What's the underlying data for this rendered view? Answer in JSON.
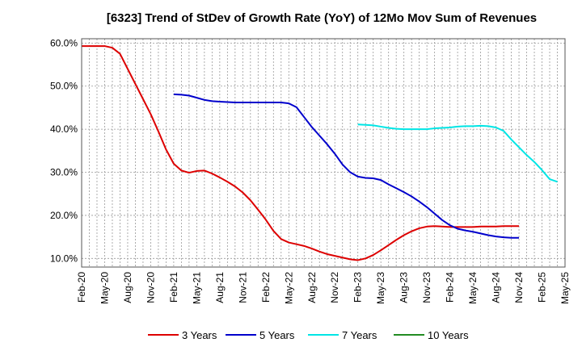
{
  "chart_data": {
    "type": "line",
    "title": "[6323]  Trend of StDev of Growth Rate (YoY) of 12Mo Mov Sum of Revenues",
    "xlabel": "",
    "ylabel": "",
    "ylim": [
      8,
      61
    ],
    "yticks": [
      10,
      20,
      30,
      40,
      50,
      60
    ],
    "ytick_labels": [
      "10.0%",
      "20.0%",
      "30.0%",
      "40.0%",
      "50.0%",
      "60.0%"
    ],
    "xticks": [
      "Feb-20",
      "May-20",
      "Aug-20",
      "Nov-20",
      "Feb-21",
      "May-21",
      "Aug-21",
      "Nov-21",
      "Feb-22",
      "May-22",
      "Aug-22",
      "Nov-22",
      "Feb-23",
      "May-23",
      "Aug-23",
      "Nov-23",
      "Feb-24",
      "May-24",
      "Aug-24",
      "Nov-24",
      "Feb-25",
      "May-25"
    ],
    "x_start": "Feb-20",
    "x_end": "May-25",
    "grid": true,
    "legend_position": "bottom",
    "series": [
      {
        "name": "3 Years",
        "color": "#dd0000",
        "points": [
          [
            0,
            59.3
          ],
          [
            1,
            59.3
          ],
          [
            2,
            59.3
          ],
          [
            3,
            59.3
          ],
          [
            4,
            58.9
          ],
          [
            5,
            57.5
          ],
          [
            6,
            54.0
          ],
          [
            7,
            50.5
          ],
          [
            8,
            47.0
          ],
          [
            9,
            43.5
          ],
          [
            10,
            39.5
          ],
          [
            11,
            35.3
          ],
          [
            12,
            32.0
          ],
          [
            13,
            30.4
          ],
          [
            14,
            29.9
          ],
          [
            15,
            30.3
          ],
          [
            16,
            30.4
          ],
          [
            17,
            29.7
          ],
          [
            18,
            28.8
          ],
          [
            19,
            27.8
          ],
          [
            20,
            26.7
          ],
          [
            21,
            25.3
          ],
          [
            22,
            23.5
          ],
          [
            23,
            21.3
          ],
          [
            24,
            19.0
          ],
          [
            25,
            16.4
          ],
          [
            26,
            14.5
          ],
          [
            27,
            13.7
          ],
          [
            28,
            13.3
          ],
          [
            29,
            12.9
          ],
          [
            30,
            12.3
          ],
          [
            31,
            11.6
          ],
          [
            32,
            11.0
          ],
          [
            33,
            10.6
          ],
          [
            34,
            10.2
          ],
          [
            35,
            9.8
          ],
          [
            36,
            9.6
          ],
          [
            37,
            10.0
          ],
          [
            38,
            10.8
          ],
          [
            39,
            11.9
          ],
          [
            40,
            13.1
          ],
          [
            41,
            14.3
          ],
          [
            42,
            15.4
          ],
          [
            43,
            16.3
          ],
          [
            44,
            17.0
          ],
          [
            45,
            17.4
          ],
          [
            46,
            17.5
          ],
          [
            47,
            17.4
          ],
          [
            48,
            17.3
          ],
          [
            49,
            17.3
          ],
          [
            50,
            17.3
          ],
          [
            51,
            17.3
          ],
          [
            52,
            17.4
          ],
          [
            53,
            17.4
          ],
          [
            54,
            17.4
          ],
          [
            55,
            17.5
          ],
          [
            56,
            17.5
          ],
          [
            57,
            17.5
          ]
        ]
      },
      {
        "name": "5 Years",
        "color": "#0000cc",
        "points": [
          [
            12,
            48.1
          ],
          [
            13,
            48.0
          ],
          [
            14,
            47.8
          ],
          [
            15,
            47.3
          ],
          [
            16,
            46.8
          ],
          [
            17,
            46.5
          ],
          [
            18,
            46.4
          ],
          [
            19,
            46.3
          ],
          [
            20,
            46.2
          ],
          [
            21,
            46.2
          ],
          [
            22,
            46.2
          ],
          [
            23,
            46.2
          ],
          [
            24,
            46.2
          ],
          [
            25,
            46.2
          ],
          [
            26,
            46.2
          ],
          [
            27,
            46.0
          ],
          [
            28,
            45.1
          ],
          [
            29,
            42.8
          ],
          [
            30,
            40.5
          ],
          [
            31,
            38.5
          ],
          [
            32,
            36.5
          ],
          [
            33,
            34.3
          ],
          [
            34,
            31.8
          ],
          [
            35,
            30.0
          ],
          [
            36,
            29.0
          ],
          [
            37,
            28.7
          ],
          [
            38,
            28.6
          ],
          [
            39,
            28.2
          ],
          [
            40,
            27.2
          ],
          [
            41,
            26.3
          ],
          [
            42,
            25.4
          ],
          [
            43,
            24.4
          ],
          [
            44,
            23.2
          ],
          [
            45,
            21.9
          ],
          [
            46,
            20.4
          ],
          [
            47,
            18.9
          ],
          [
            48,
            17.7
          ],
          [
            49,
            16.9
          ],
          [
            50,
            16.5
          ],
          [
            51,
            16.2
          ],
          [
            52,
            15.8
          ],
          [
            53,
            15.4
          ],
          [
            54,
            15.1
          ],
          [
            55,
            14.9
          ],
          [
            56,
            14.8
          ],
          [
            57,
            14.8
          ]
        ]
      },
      {
        "name": "7 Years",
        "color": "#00e5e5",
        "points": [
          [
            36,
            41.1
          ],
          [
            37,
            41.0
          ],
          [
            38,
            40.9
          ],
          [
            39,
            40.6
          ],
          [
            40,
            40.3
          ],
          [
            41,
            40.1
          ],
          [
            42,
            40.0
          ],
          [
            43,
            40.0
          ],
          [
            44,
            40.0
          ],
          [
            45,
            40.0
          ],
          [
            46,
            40.2
          ],
          [
            47,
            40.3
          ],
          [
            48,
            40.4
          ],
          [
            49,
            40.6
          ],
          [
            50,
            40.7
          ],
          [
            51,
            40.7
          ],
          [
            52,
            40.8
          ],
          [
            53,
            40.7
          ],
          [
            54,
            40.4
          ],
          [
            55,
            39.6
          ],
          [
            56,
            37.6
          ],
          [
            57,
            35.8
          ],
          [
            58,
            34.0
          ],
          [
            59,
            32.4
          ],
          [
            60,
            30.5
          ],
          [
            61,
            28.4
          ],
          [
            62,
            27.8
          ]
        ]
      },
      {
        "name": "10 Years",
        "color": "#228b22",
        "points": []
      }
    ]
  }
}
